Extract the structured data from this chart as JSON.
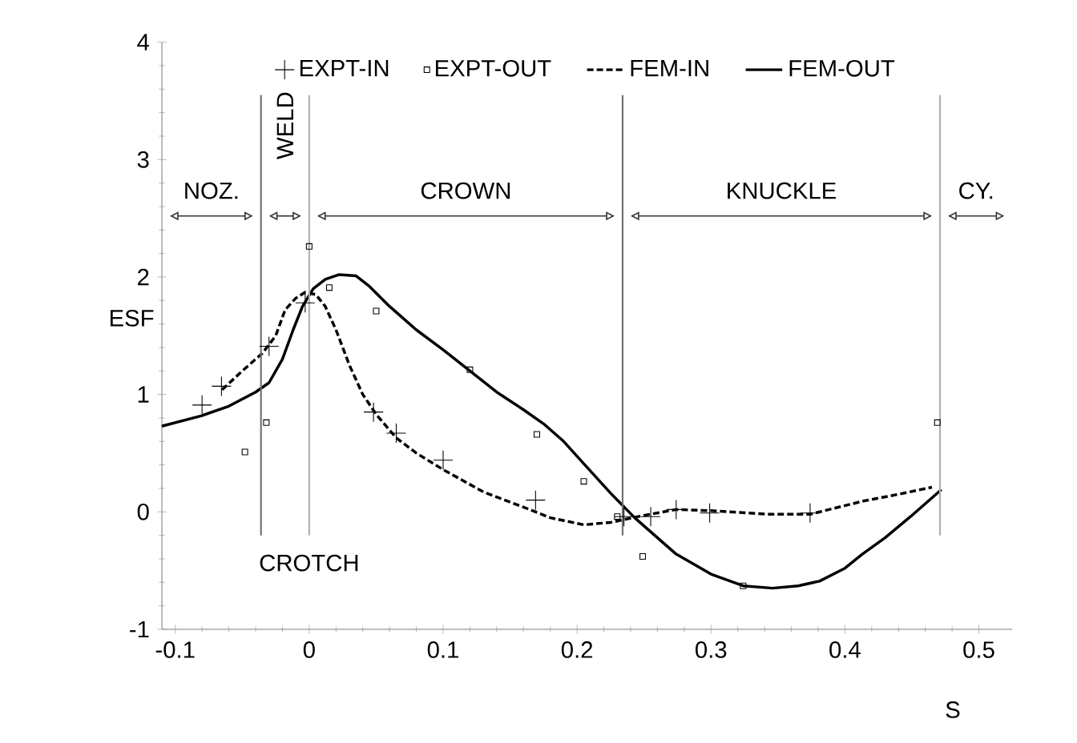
{
  "chart_data": {
    "type": "line",
    "xlabel": "S",
    "ylabel": "ESF",
    "xlim": [
      -0.11,
      0.525
    ],
    "ylim": [
      -1,
      4
    ],
    "xticks": [
      -0.1,
      0,
      0.1,
      0.2,
      0.3,
      0.4,
      0.5
    ],
    "yticks": [
      -1,
      0,
      1,
      2,
      3,
      4
    ],
    "legend": "top",
    "series": [
      {
        "name": "EXPT-IN",
        "type": "scatter",
        "marker": "cross",
        "color": "#000000",
        "x": [
          -0.08,
          -0.0655,
          -0.03,
          -0.003,
          0.048,
          0.065,
          0.1,
          0.169,
          0.235,
          0.255,
          0.274,
          0.299,
          0.374
        ],
        "values": [
          0.91,
          1.07,
          1.41,
          1.78,
          0.85,
          0.67,
          0.44,
          0.1,
          -0.04,
          -0.04,
          0.02,
          -0.01,
          -0.01
        ]
      },
      {
        "name": "EXPT-OUT",
        "type": "scatter",
        "marker": "square",
        "color": "#000000",
        "x": [
          -0.048,
          -0.032,
          0.0,
          0.015,
          0.05,
          0.12,
          0.17,
          0.205,
          0.23,
          0.249,
          0.324,
          0.469
        ],
        "values": [
          0.51,
          0.76,
          2.26,
          1.91,
          1.71,
          1.21,
          0.66,
          0.26,
          -0.04,
          -0.38,
          -0.63,
          0.76
        ]
      },
      {
        "name": "FEM-IN",
        "type": "line",
        "line_style": "dashed",
        "color": "#000000",
        "x": [
          -0.065,
          -0.05,
          -0.035,
          -0.025,
          -0.018,
          -0.01,
          -0.003,
          0.005,
          0.012,
          0.02,
          0.03,
          0.04,
          0.05,
          0.065,
          0.08,
          0.1,
          0.13,
          0.16,
          0.18,
          0.205,
          0.225,
          0.25,
          0.274,
          0.3,
          0.342,
          0.374,
          0.413,
          0.44,
          0.465
        ],
        "values": [
          1.04,
          1.2,
          1.35,
          1.5,
          1.72,
          1.82,
          1.87,
          1.85,
          1.75,
          1.55,
          1.25,
          1.0,
          0.83,
          0.63,
          0.5,
          0.36,
          0.17,
          0.04,
          -0.05,
          -0.11,
          -0.09,
          -0.03,
          0.02,
          0.01,
          -0.02,
          -0.02,
          0.09,
          0.15,
          0.21
        ]
      },
      {
        "name": "FEM-OUT",
        "type": "line",
        "line_style": "solid",
        "color": "#000000",
        "x": [
          -0.11,
          -0.08,
          -0.06,
          -0.04,
          -0.03,
          -0.02,
          -0.012,
          -0.005,
          0.003,
          0.012,
          0.022,
          0.035,
          0.045,
          0.06,
          0.08,
          0.1,
          0.12,
          0.14,
          0.16,
          0.175,
          0.19,
          0.205,
          0.225,
          0.243,
          0.26,
          0.274,
          0.3,
          0.324,
          0.346,
          0.365,
          0.381,
          0.4,
          0.413,
          0.43,
          0.449,
          0.472
        ],
        "values": [
          0.73,
          0.82,
          0.9,
          1.02,
          1.1,
          1.3,
          1.55,
          1.75,
          1.9,
          1.98,
          2.02,
          2.01,
          1.92,
          1.75,
          1.55,
          1.38,
          1.2,
          1.02,
          0.87,
          0.75,
          0.6,
          0.41,
          0.16,
          -0.05,
          -0.22,
          -0.36,
          -0.53,
          -0.63,
          -0.65,
          -0.63,
          -0.59,
          -0.48,
          -0.36,
          -0.22,
          -0.04,
          0.19
        ]
      }
    ],
    "ref_lines": [
      {
        "axis": "x",
        "value": -0.036,
        "color": "#707070"
      },
      {
        "axis": "x",
        "value": 0,
        "label": "CROTCH",
        "color": "#b0b0b0"
      },
      {
        "axis": "x",
        "value": 0.234,
        "color": "#707070"
      },
      {
        "axis": "x",
        "value": 0.471,
        "color": "#b0b0b0"
      }
    ],
    "annotations": [
      "NOZ.",
      "WELD",
      "CROWN",
      "KNUCKLE",
      "CY."
    ]
  }
}
